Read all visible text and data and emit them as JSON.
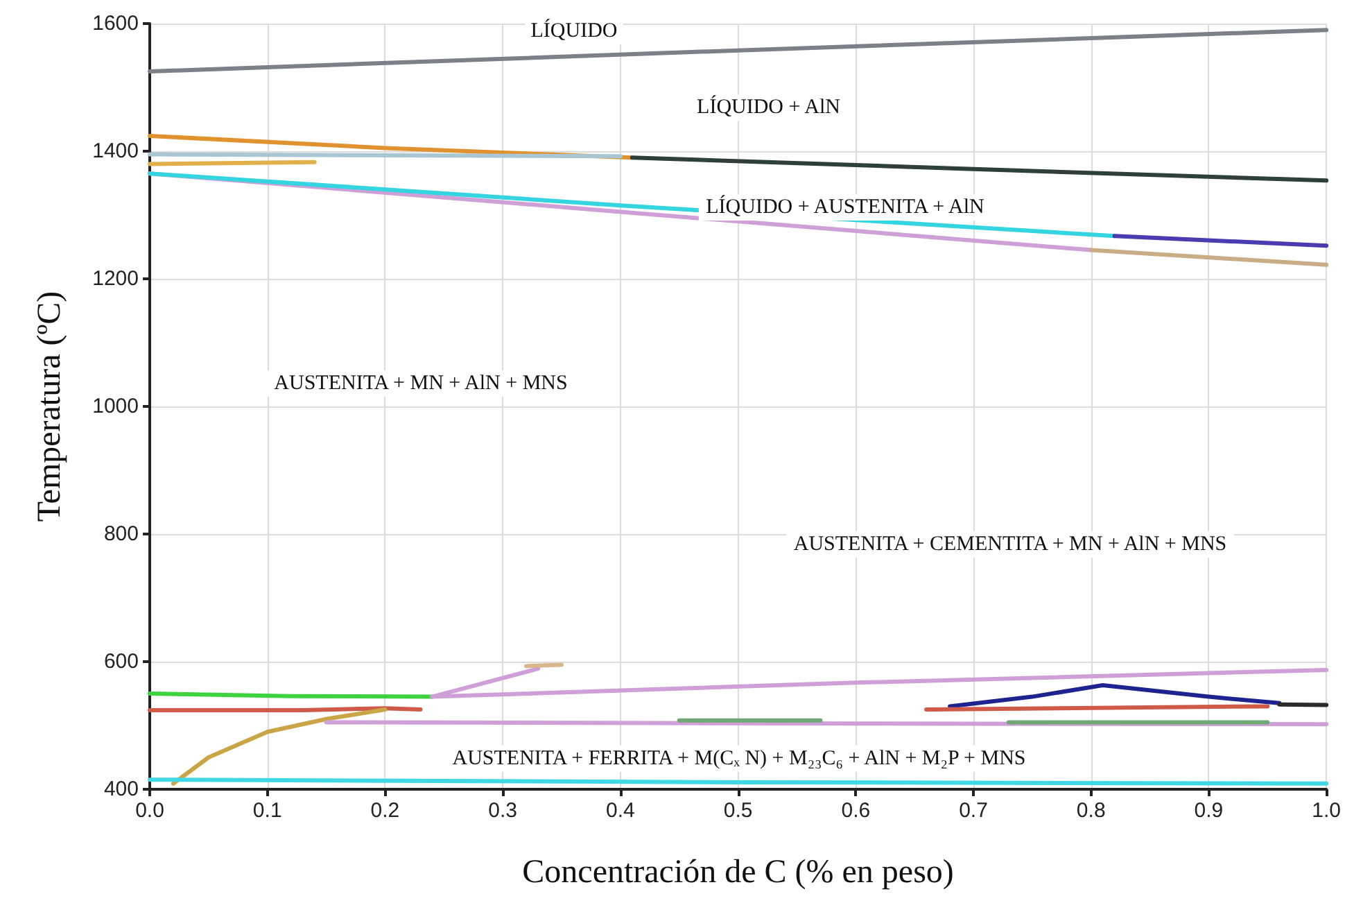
{
  "chart_data": {
    "type": "line",
    "xlabel": "Concentración de C (% en peso)",
    "ylabel": "Temperatura (ºC)",
    "xlim": [
      0,
      1
    ],
    "ylim": [
      400,
      1600
    ],
    "xticks": [
      {
        "value": 0,
        "label": "0.0"
      },
      {
        "value": 0.1,
        "label": "0.1"
      },
      {
        "value": 0.2,
        "label": "0.2"
      },
      {
        "value": 0.3,
        "label": "0.3"
      },
      {
        "value": 0.4,
        "label": "0.4"
      },
      {
        "value": 0.5,
        "label": "0.5"
      },
      {
        "value": 0.6,
        "label": "0.6"
      },
      {
        "value": 0.7,
        "label": "0.7"
      },
      {
        "value": 0.8,
        "label": "0.8"
      },
      {
        "value": 0.9,
        "label": "0.9"
      },
      {
        "value": 1,
        "label": "1.0"
      }
    ],
    "yticks": [
      400,
      600,
      800,
      1000,
      1200,
      1400,
      1600
    ],
    "grid": true,
    "marker": "none",
    "line_style": "solid",
    "series": [
      {
        "color": "#7b8089",
        "x": [
          0,
          0.5,
          1
        ],
        "values": [
          1525,
          1558,
          1590
        ]
      },
      {
        "color": "#e0922e",
        "x": [
          0,
          0.2,
          0.41
        ],
        "values": [
          1424,
          1405,
          1390
        ]
      },
      {
        "color": "#2f3f3c",
        "x": [
          0.41,
          0.7,
          1
        ],
        "values": [
          1390,
          1372,
          1354
        ]
      },
      {
        "color": "#a9c6d3",
        "x": [
          0,
          0.4
        ],
        "values": [
          1395,
          1392
        ]
      },
      {
        "color": "#e1b04a",
        "x": [
          0,
          0.14
        ],
        "values": [
          1380,
          1383
        ]
      },
      {
        "color": "#cfa0d8",
        "x": [
          0,
          0.4,
          0.8
        ],
        "values": [
          1365,
          1305,
          1245
        ]
      },
      {
        "color": "#c9ad86",
        "x": [
          0.8,
          1
        ],
        "values": [
          1245,
          1222
        ]
      },
      {
        "color": "#34d4e0",
        "x": [
          0,
          0.4,
          0.82
        ],
        "values": [
          1365,
          1315,
          1267
        ]
      },
      {
        "color": "#4b3bb0",
        "x": [
          0.82,
          1
        ],
        "values": [
          1267,
          1252
        ]
      },
      {
        "color": "#3fd23f",
        "x": [
          0,
          0.12,
          0.24
        ],
        "values": [
          550,
          546,
          545
        ]
      },
      {
        "color": "#cf5a48",
        "x": [
          0,
          0.13,
          0.2,
          0.23
        ],
        "values": [
          524,
          524,
          527,
          525
        ]
      },
      {
        "color": "#c9a545",
        "x": [
          0.02,
          0.05,
          0.1,
          0.15,
          0.2
        ],
        "values": [
          409,
          450,
          490,
          510,
          525
        ]
      },
      {
        "color": "#cfa0d8",
        "x": [
          0.15,
          0.6,
          1
        ],
        "values": [
          505,
          503,
          502
        ]
      },
      {
        "color": "#cfa0d8",
        "x": [
          0.24,
          0.33
        ],
        "values": [
          545,
          589
        ]
      },
      {
        "color": "#d9b78e",
        "x": [
          0.32,
          0.35
        ],
        "values": [
          593,
          595
        ]
      },
      {
        "color": "#cfa0d8",
        "x": [
          0.24,
          0.6,
          1
        ],
        "values": [
          545,
          567,
          587
        ]
      },
      {
        "color": "#1d2490",
        "x": [
          0.68,
          0.75,
          0.81,
          0.9,
          0.96
        ],
        "values": [
          530,
          545,
          563,
          545,
          535
        ]
      },
      {
        "color": "#cf5a48",
        "x": [
          0.66,
          0.95
        ],
        "values": [
          525,
          530
        ]
      },
      {
        "color": "#2b2b2b",
        "x": [
          0.96,
          1
        ],
        "values": [
          533,
          532
        ]
      },
      {
        "color": "#6fa872",
        "x": [
          0.45,
          0.57
        ],
        "values": [
          508,
          508
        ]
      },
      {
        "color": "#6fa872",
        "x": [
          0.73,
          0.95
        ],
        "values": [
          505,
          505
        ]
      },
      {
        "color": "#3fd8e4",
        "x": [
          0,
          0.5,
          1
        ],
        "values": [
          415,
          411,
          409
        ]
      }
    ],
    "annotations": [
      "LÍQUIDO",
      "LÍQUIDO + AlN",
      "LÍQUIDO + AUSTENITA + AlN",
      "AUSTENITA + MN + AlN + MNS",
      "AUSTENITA + CEMENTITA + MN + AlN + MNS",
      "AUSTENITA + FERRITA + M(Cₓ N) + M₂₃C₆ + AlN + M₂P + MNS"
    ]
  }
}
